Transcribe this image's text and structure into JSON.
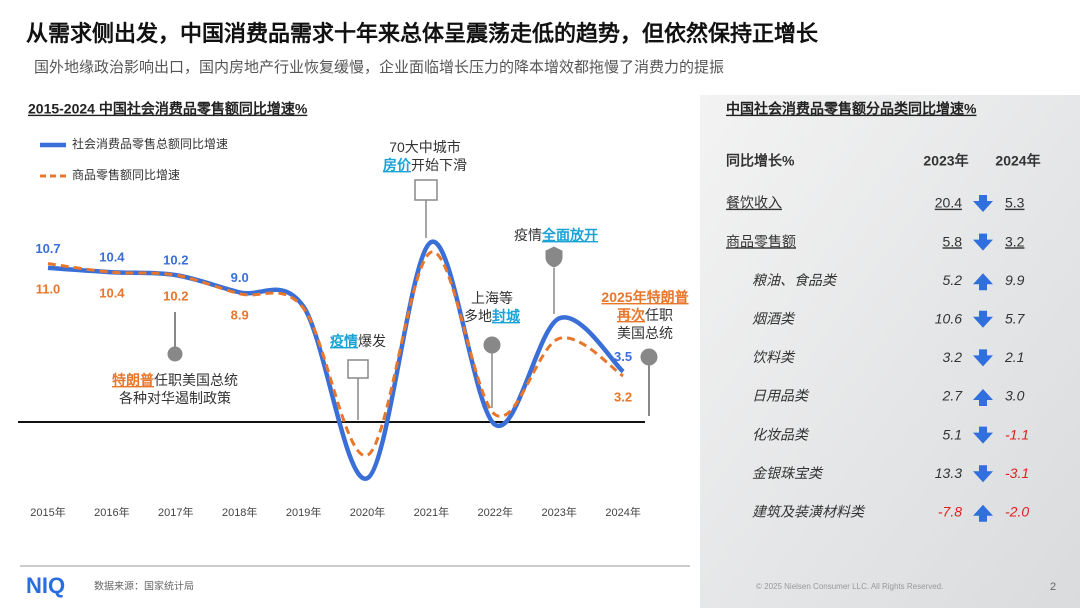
{
  "title": "从需求侧出发，中国消费品需求十年来总体呈震荡走低的趋势，但依然保持正增长",
  "subtitle": "国外地缘政治影响出口，国内房地产行业恢复缓慢，企业面临增长压力的降本增效都拖慢了消费力的提振",
  "chart_data": {
    "type": "line",
    "title": "2015-2024 中国社会消费品零售额同比增速%",
    "categories": [
      "2015年",
      "2016年",
      "2017年",
      "2018年",
      "2019年",
      "2020年",
      "2021年",
      "2022年",
      "2023年",
      "2024年"
    ],
    "series": [
      {
        "name": "社会消费品零售总额同比增速",
        "color": "#3a6fd8",
        "values": [
          10.7,
          10.4,
          10.2,
          9.0,
          8.0,
          -3.9,
          12.5,
          -0.2,
          7.2,
          3.5
        ],
        "value_labels": [
          "10.7",
          "10.4",
          "10.2",
          "9.0",
          null,
          null,
          null,
          null,
          null,
          "3.5"
        ]
      },
      {
        "name": "商品零售额同比增速",
        "color": "#e8762b",
        "dashed": true,
        "values": [
          11.0,
          10.4,
          10.2,
          8.9,
          7.9,
          -2.3,
          11.8,
          0.5,
          5.8,
          3.2
        ],
        "value_labels": [
          "11.0",
          "10.4",
          "10.2",
          "8.9",
          null,
          null,
          null,
          null,
          null,
          "3.2"
        ]
      }
    ],
    "annotations": [
      {
        "lines": [
          [
            {
              "text": "特朗普",
              "color": "#e8762b"
            },
            "任职美国总统"
          ],
          [
            "各种对华遏制政策"
          ]
        ]
      },
      {
        "lines": [
          [
            {
              "text": "疫情",
              "color": "#1ba3d6"
            },
            "爆发"
          ]
        ]
      },
      {
        "lines": [
          [
            "70大中城市"
          ],
          [
            {
              "text": "房价",
              "color": "#1ba3d6"
            },
            "开始下滑"
          ]
        ]
      },
      {
        "lines": [
          [
            "上海等"
          ],
          [
            "多地",
            {
              "text": "封城",
              "color": "#1ba3d6"
            }
          ]
        ]
      },
      {
        "lines": [
          [
            "疫情",
            {
              "text": "全面放开",
              "color": "#1ba3d6"
            }
          ]
        ]
      },
      {
        "lines": [
          [
            {
              "text": "2025年特朗普",
              "color": "#e8762b"
            }
          ],
          [
            {
              "text": "再次",
              "color": "#e8762b"
            },
            "任职"
          ],
          [
            "美国总统"
          ]
        ]
      }
    ]
  },
  "table": {
    "title": "中国社会消费品零售额分品类同比增速%",
    "header": [
      "同比增长%",
      "2023年",
      "2024年"
    ],
    "rows": [
      {
        "name": "餐饮收入",
        "values": [
          "20.4",
          "5.3"
        ]
      },
      {
        "name": "商品零售额",
        "values": [
          "5.8",
          "3.2"
        ],
        "items": [
          {
            "name": "粮油、食品类",
            "values": [
              "5.2",
              "9.9"
            ]
          },
          {
            "name": "烟酒类",
            "values": [
              "10.6",
              "5.7"
            ]
          },
          {
            "name": "饮料类",
            "values": [
              "3.2",
              "2.1"
            ]
          },
          {
            "name": "日用品类",
            "values": [
              "2.7",
              "3.0"
            ]
          },
          {
            "name": "化妆品类",
            "values": [
              "5.1",
              "-1.1"
            ]
          },
          {
            "name": "金银珠宝类",
            "values": [
              "13.3",
              "-3.1"
            ]
          },
          {
            "name": "建筑及装潢材料类",
            "values": [
              "-7.8",
              "-2.0"
            ]
          }
        ]
      }
    ]
  },
  "footer": {
    "logo": "NIQ",
    "source": "数据来源：国家统计局",
    "copyright": "© 2025 Nielsen Consumer LLC. All Rights Reserved.",
    "page": "2"
  }
}
